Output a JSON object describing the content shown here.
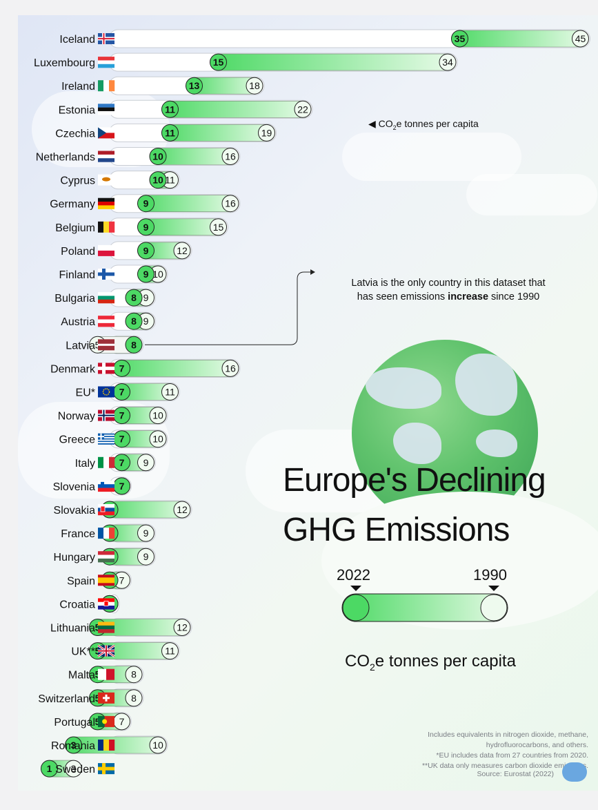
{
  "title_line1": "Europe's Declining",
  "title_line2": "GHG Emissions",
  "legend": {
    "year_2022": "2022",
    "year_1990": "1990"
  },
  "unit_label": {
    "prefix": "CO",
    "sub": "2",
    "suffix": "e tonnes per capita"
  },
  "unit_note": {
    "prefix": "CO",
    "sub": "2",
    "suffix": "e tonnes per capita"
  },
  "annotation": {
    "line1": "Latvia is the only country in this dataset that",
    "line2_pre": "has seen emissions ",
    "line2_bold": "increase",
    "line2_post": " since 1990"
  },
  "notes": [
    "Includes equivalents in nitrogen dioxide, methane,",
    "hydrofluorocarbons, and others.",
    "*EU includes data from 27 countries from 2020.",
    "**UK data only measures carbon dioxide emissions."
  ],
  "source": "Source: Eurostat (2022)",
  "colors": {
    "accent": "#4cd964",
    "accent_dark": "#2fb84a",
    "bar_light": "#d8f7d8"
  },
  "chart_data": {
    "type": "dumbbell",
    "title": "Europe's Declining GHG Emissions",
    "ylabel": "CO2e tonnes per capita",
    "xlim": [
      0,
      45
    ],
    "series": [
      {
        "name": "2022"
      },
      {
        "name": "1990"
      }
    ],
    "rows": [
      {
        "country": "Iceland",
        "flag": "iceland",
        "v2022": 35,
        "v1990": 45
      },
      {
        "country": "Luxembourg",
        "flag": "luxembourg",
        "v2022": 15,
        "v1990": 34
      },
      {
        "country": "Ireland",
        "flag": "ireland",
        "v2022": 13,
        "v1990": 18
      },
      {
        "country": "Estonia",
        "flag": "estonia",
        "v2022": 11,
        "v1990": 22
      },
      {
        "country": "Czechia",
        "flag": "czechia",
        "v2022": 11,
        "v1990": 19
      },
      {
        "country": "Netherlands",
        "flag": "netherlands",
        "v2022": 10,
        "v1990": 16
      },
      {
        "country": "Cyprus",
        "flag": "cyprus",
        "v2022": 10,
        "v1990": 11
      },
      {
        "country": "Germany",
        "flag": "germany",
        "v2022": 9,
        "v1990": 16
      },
      {
        "country": "Belgium",
        "flag": "belgium",
        "v2022": 9,
        "v1990": 15
      },
      {
        "country": "Poland",
        "flag": "poland",
        "v2022": 9,
        "v1990": 12
      },
      {
        "country": "Finland",
        "flag": "finland",
        "v2022": 9,
        "v1990": 10
      },
      {
        "country": "Bulgaria",
        "flag": "bulgaria",
        "v2022": 8,
        "v1990": 9
      },
      {
        "country": "Austria",
        "flag": "austria",
        "v2022": 8,
        "v1990": 9
      },
      {
        "country": "Latvia",
        "flag": "latvia",
        "v2022": 8,
        "v1990": 5
      },
      {
        "country": "Denmark",
        "flag": "denmark",
        "v2022": 7,
        "v1990": 16
      },
      {
        "country": "EU*",
        "flag": "eu",
        "v2022": 7,
        "v1990": 11
      },
      {
        "country": "Norway",
        "flag": "norway",
        "v2022": 7,
        "v1990": 10
      },
      {
        "country": "Greece",
        "flag": "greece",
        "v2022": 7,
        "v1990": 10
      },
      {
        "country": "Italy",
        "flag": "italy",
        "v2022": 7,
        "v1990": 9
      },
      {
        "country": "Slovenia",
        "flag": "slovenia",
        "v2022": 7,
        "v1990": 7
      },
      {
        "country": "Slovakia",
        "flag": "slovakia",
        "v2022": 6,
        "v1990": 12
      },
      {
        "country": "France",
        "flag": "france",
        "v2022": 6,
        "v1990": 9
      },
      {
        "country": "Hungary",
        "flag": "hungary",
        "v2022": 6,
        "v1990": 9
      },
      {
        "country": "Spain",
        "flag": "spain",
        "v2022": 6,
        "v1990": 7
      },
      {
        "country": "Croatia",
        "flag": "croatia",
        "v2022": 6,
        "v1990": 6
      },
      {
        "country": "Lithuania",
        "flag": "lithuania",
        "v2022": 5,
        "v1990": 12
      },
      {
        "country": "UK**",
        "flag": "uk",
        "v2022": 5,
        "v1990": 11
      },
      {
        "country": "Malta",
        "flag": "malta",
        "v2022": 5,
        "v1990": 8
      },
      {
        "country": "Switzerland",
        "flag": "switzerland",
        "v2022": 5,
        "v1990": 8
      },
      {
        "country": "Portugal",
        "flag": "portugal",
        "v2022": 5,
        "v1990": 7
      },
      {
        "country": "Romania",
        "flag": "romania",
        "v2022": 3,
        "v1990": 10
      },
      {
        "country": "Sweden",
        "flag": "sweden",
        "v2022": 1,
        "v1990": 3
      }
    ]
  }
}
